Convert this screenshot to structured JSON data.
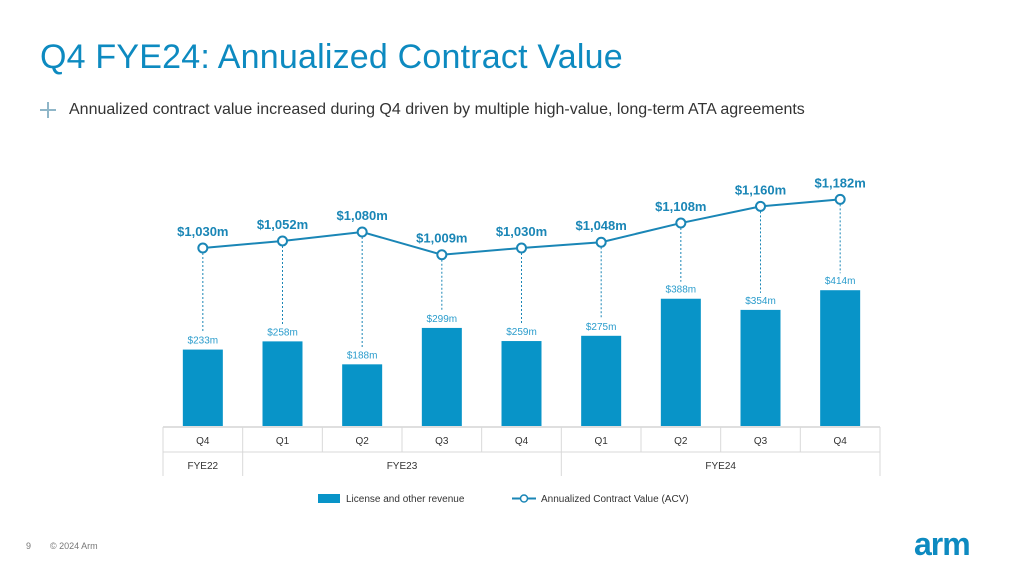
{
  "slide": {
    "title": "Q4 FYE24: Annualized Contract Value",
    "bullet": "Annualized contract value increased during Q4 driven by multiple high-value, long-term ATA agreements",
    "page_number": "9",
    "copyright": "© 2024 Arm",
    "logo_text": "arm"
  },
  "colors": {
    "accent": "#0d8ac0",
    "bar": "#0894c8",
    "line": "#1a86b6",
    "text": "#333333"
  },
  "chart_data": {
    "type": "bar",
    "categories": [
      "Q4",
      "Q1",
      "Q2",
      "Q3",
      "Q4",
      "Q1",
      "Q2",
      "Q3",
      "Q4"
    ],
    "groups": [
      {
        "label": "FYE22",
        "span": 1
      },
      {
        "label": "FYE23",
        "span": 4
      },
      {
        "label": "FYE24",
        "span": 4
      }
    ],
    "series": [
      {
        "name": "License and other revenue",
        "type": "bar",
        "values": [
          233,
          258,
          188,
          299,
          259,
          275,
          388,
          354,
          414
        ],
        "labels": [
          "$233m",
          "$258m",
          "$188m",
          "$299m",
          "$259m",
          "$275m",
          "$388m",
          "$354m",
          "$414m"
        ]
      },
      {
        "name": "Annualized Contract Value (ACV)",
        "type": "line",
        "values": [
          1030,
          1052,
          1080,
          1009,
          1030,
          1048,
          1108,
          1160,
          1182
        ],
        "labels": [
          "$1,030m",
          "$1,052m",
          "$1,080m",
          "$1,009m",
          "$1,030m",
          "$1,048m",
          "$1,108m",
          "$1,160m",
          "$1,182m"
        ]
      }
    ],
    "legend_position": "bottom-center",
    "grid": false
  }
}
